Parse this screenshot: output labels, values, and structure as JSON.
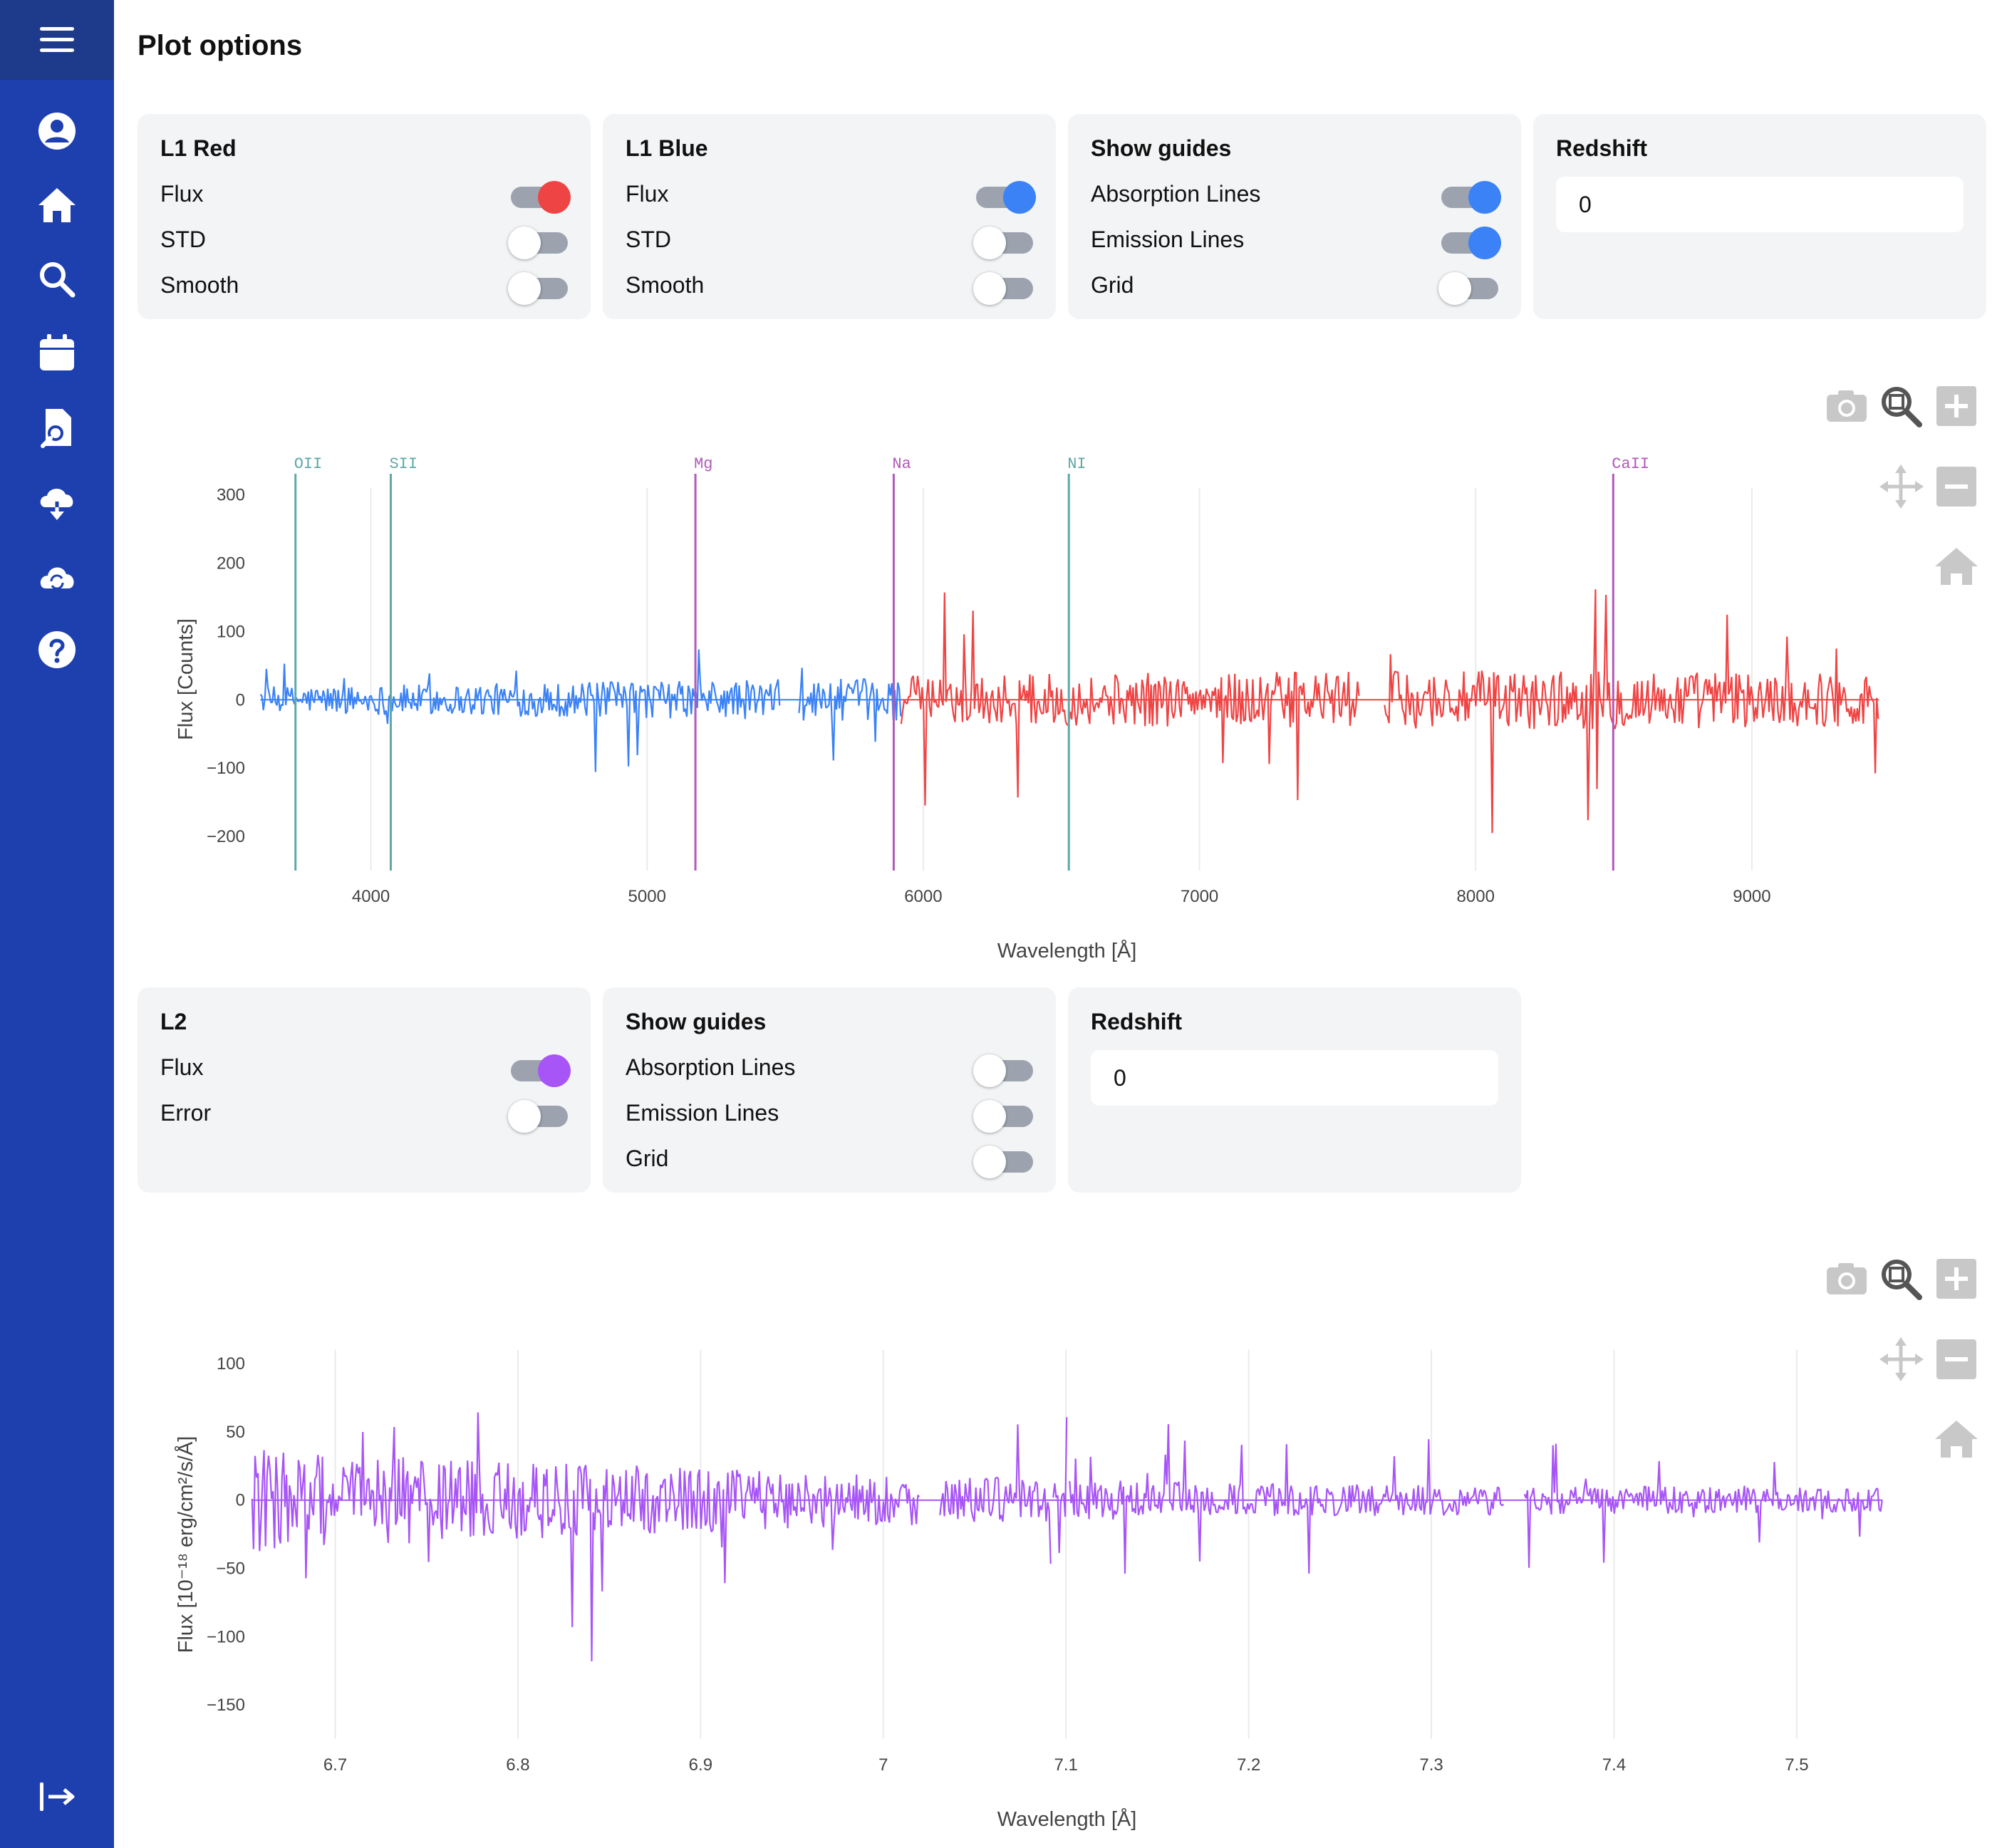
{
  "page": {
    "title": "Plot options"
  },
  "sidebar": {
    "items": [
      {
        "icon": "menu-icon"
      },
      {
        "icon": "user-icon"
      },
      {
        "icon": "home-icon"
      },
      {
        "icon": "search-icon"
      },
      {
        "icon": "calendar-icon"
      },
      {
        "icon": "document-search-icon"
      },
      {
        "icon": "cloud-download-icon"
      },
      {
        "icon": "cloud-sync-icon"
      },
      {
        "icon": "help-icon"
      },
      {
        "icon": "logout-icon"
      }
    ]
  },
  "colors": {
    "red": "#ef4444",
    "blue": "#3b82f6",
    "purple": "#a855f7",
    "teal": "#5fa8a8",
    "magenta": "#b05ab8"
  },
  "l1_options": {
    "red": {
      "title": "L1 Red",
      "flux": "Flux",
      "std": "STD",
      "smooth": "Smooth",
      "flux_on": true,
      "std_on": false,
      "smooth_on": false
    },
    "blue": {
      "title": "L1 Blue",
      "flux": "Flux",
      "std": "STD",
      "smooth": "Smooth",
      "flux_on": true,
      "std_on": false,
      "smooth_on": false
    },
    "guides": {
      "title": "Show guides",
      "absorption": "Absorption Lines",
      "emission": "Emission Lines",
      "grid": "Grid",
      "absorption_on": true,
      "emission_on": true,
      "grid_on": false
    },
    "redshift": {
      "title": "Redshift",
      "value": "0"
    }
  },
  "l2_options": {
    "l2": {
      "title": "L2",
      "flux": "Flux",
      "error": "Error",
      "flux_on": true,
      "error_on": false
    },
    "guides": {
      "title": "Show guides",
      "absorption": "Absorption Lines",
      "emission": "Emission Lines",
      "grid": "Grid",
      "absorption_on": false,
      "emission_on": false,
      "grid_on": false
    },
    "redshift": {
      "title": "Redshift",
      "value": "0"
    }
  },
  "chart_data": [
    {
      "type": "line",
      "xlabel": "Wavelength [Å]",
      "ylabel": "Flux [Counts]",
      "xlim": [
        3560,
        9480
      ],
      "ylim": [
        -250,
        310
      ],
      "xticks": [
        4000,
        5000,
        6000,
        7000,
        8000,
        9000
      ],
      "xtick_labels": [
        "4000",
        "5000",
        "6000",
        "7000",
        "8000",
        "9000"
      ],
      "yticks": [
        300,
        200,
        100,
        0,
        -100,
        -200
      ],
      "ytick_labels": [
        "300",
        "200",
        "100",
        "0",
        "−100",
        "−200"
      ],
      "series": [
        {
          "color": "blue",
          "segments": [
            [
              3600,
              5480
            ],
            [
              5550,
              5920
            ]
          ],
          "noise": [
            35,
            45,
            55,
            60,
            55,
            50,
            45
          ]
        },
        {
          "color": "red",
          "segments": [
            [
              5920,
              7580
            ],
            [
              7670,
              9460
            ]
          ],
          "noise": [
            40,
            55,
            65,
            70,
            75,
            80,
            70
          ]
        }
      ],
      "guide_lines": [
        {
          "label": "OII",
          "x": 3727,
          "color": "teal"
        },
        {
          "label": "SII",
          "x": 4072,
          "color": "teal"
        },
        {
          "label": "Mg",
          "x": 5175,
          "color": "magenta"
        },
        {
          "label": "Na",
          "x": 5893,
          "color": "magenta"
        },
        {
          "label": "NI",
          "x": 6527,
          "color": "teal"
        },
        {
          "label": "CaII",
          "x": 8498,
          "color": "magenta"
        }
      ]
    },
    {
      "type": "line",
      "xlabel": "Wavelength [Å]",
      "ylabel": "Flux [10⁻¹⁸ erg/cm²/s/Å]",
      "xlim": [
        6.653,
        7.548
      ],
      "ylim": [
        -175,
        110
      ],
      "xticks": [
        6.7,
        6.8,
        6.9,
        7.0,
        7.1,
        7.2,
        7.3,
        7.4,
        7.5
      ],
      "xtick_labels": [
        "6.7",
        "6.8",
        "6.9",
        "7",
        "7.1",
        "7.2",
        "7.3",
        "7.4",
        "7.5"
      ],
      "yticks": [
        100,
        50,
        0,
        -50,
        -100,
        -150
      ],
      "ytick_labels": [
        "100",
        "50",
        "0",
        "−50",
        "−100",
        "−150"
      ],
      "series": [
        {
          "color": "purple",
          "segments": [
            [
              6.6545,
              7.02
            ],
            [
              7.031,
              7.092
            ],
            [
              7.093,
              7.101
            ],
            [
              7.102,
              7.34
            ],
            [
              7.351,
              7.547
            ]
          ],
          "noise": [
            70,
            55,
            45,
            35,
            28,
            22,
            20,
            18,
            16
          ]
        }
      ]
    }
  ]
}
